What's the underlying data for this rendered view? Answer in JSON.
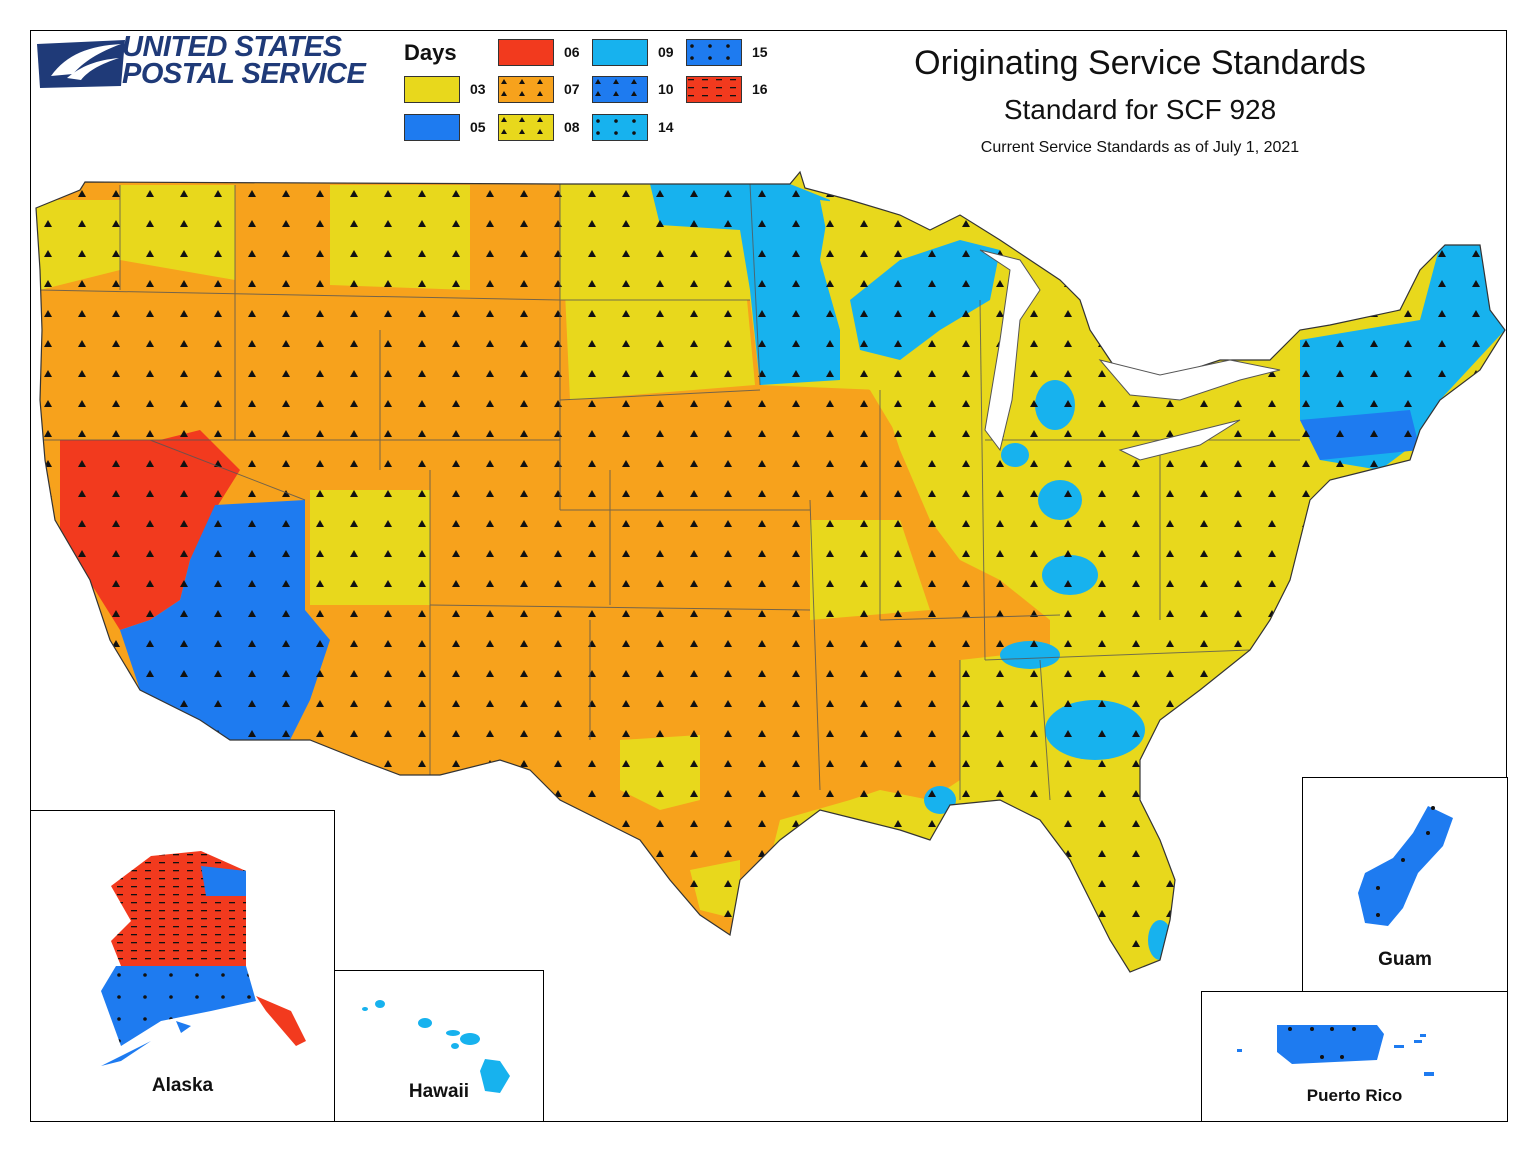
{
  "header": {
    "logo_line1": "UNITED STATES",
    "logo_line2": "POSTAL SERVICE",
    "title": "Originating Service Standards",
    "subtitle": "Standard for SCF 928",
    "as_of": "Current Service Standards as of July 1, 2021"
  },
  "legend": {
    "title": "Days",
    "items": [
      {
        "label": "03",
        "color": "#e8d81c",
        "pattern": "none"
      },
      {
        "label": "05",
        "color": "#1e7bf0",
        "pattern": "none"
      },
      {
        "label": "06",
        "color": "#f23a1e",
        "pattern": "none"
      },
      {
        "label": "07",
        "color": "#f7a21c",
        "pattern": "triangles"
      },
      {
        "label": "08",
        "color": "#e8d81c",
        "pattern": "triangles"
      },
      {
        "label": "09",
        "color": "#17b2ee",
        "pattern": "none"
      },
      {
        "label": "10",
        "color": "#1e7bf0",
        "pattern": "triangles"
      },
      {
        "label": "14",
        "color": "#17b2ee",
        "pattern": "dots"
      },
      {
        "label": "15",
        "color": "#1e7bf0",
        "pattern": "dots"
      },
      {
        "label": "16",
        "color": "#f23a1e",
        "pattern": "dashes"
      }
    ]
  },
  "insets": {
    "alaska": "Alaska",
    "hawaii": "Hawaii",
    "guam": "Guam",
    "puerto_rico": "Puerto Rico"
  },
  "colors": {
    "yellow": "#e8d81c",
    "orange": "#f7a21c",
    "red": "#f23a1e",
    "blue": "#1e7bf0",
    "cyan": "#17b2ee",
    "border": "#555555"
  }
}
